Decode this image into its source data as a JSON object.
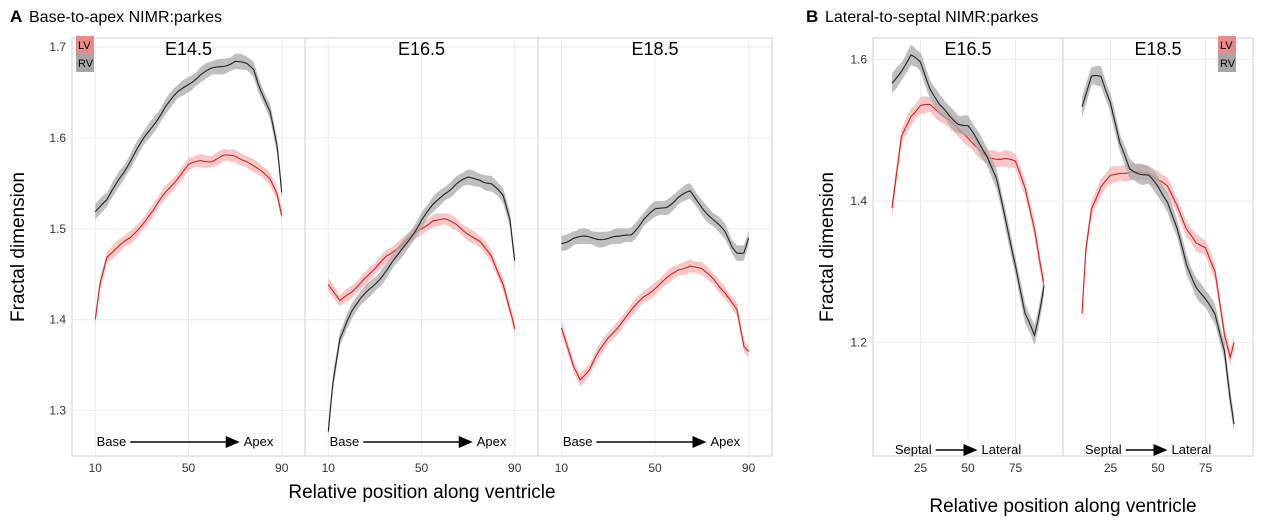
{
  "colors": {
    "LV": "#cc2222",
    "LV_band": "#f4b4b4",
    "RV": "#222222",
    "RV_band": "#aaaaaa",
    "LV_key": "#e88a8a",
    "RV_key": "#a6a6a6",
    "grid": "#ececec",
    "border": "#cfcfcf"
  },
  "chart_data": [
    {
      "type": "line",
      "label": "A",
      "title": "Base-to-apex NIMR:parkes",
      "xlabel": "Relative position along ventricle",
      "ylabel": "Fractal dimension",
      "ylim": [
        1.25,
        1.71
      ],
      "yticks": [
        1.3,
        1.4,
        1.5,
        1.6,
        1.7
      ],
      "xlim": [
        0,
        100
      ],
      "xticks": [
        10,
        50,
        90
      ],
      "grid": true,
      "legend_position": "top-left",
      "legend": [
        "LV",
        "RV"
      ],
      "direction_labels": [
        "Base",
        "Apex"
      ],
      "facets": [
        {
          "title": "E14.5",
          "series": [
            {
              "name": "LV",
              "x": [
                10,
                12,
                15,
                20,
                25,
                30,
                35,
                40,
                45,
                50,
                55,
                60,
                65,
                70,
                75,
                80,
                85,
                88,
                90
              ],
              "y": [
                1.4,
                1.44,
                1.47,
                1.48,
                1.49,
                1.505,
                1.52,
                1.54,
                1.555,
                1.57,
                1.575,
                1.575,
                1.58,
                1.58,
                1.575,
                1.565,
                1.555,
                1.54,
                1.515
              ]
            },
            {
              "name": "RV",
              "x": [
                10,
                15,
                20,
                25,
                30,
                35,
                40,
                45,
                50,
                55,
                60,
                65,
                70,
                75,
                78,
                80,
                85,
                88,
                90
              ],
              "y": [
                1.52,
                1.53,
                1.555,
                1.575,
                1.595,
                1.615,
                1.635,
                1.648,
                1.66,
                1.67,
                1.675,
                1.68,
                1.685,
                1.68,
                1.675,
                1.66,
                1.63,
                1.59,
                1.54
              ]
            }
          ]
        },
        {
          "title": "E16.5",
          "series": [
            {
              "name": "LV",
              "x": [
                10,
                15,
                20,
                25,
                30,
                35,
                40,
                45,
                50,
                55,
                60,
                65,
                70,
                75,
                80,
                85,
                90
              ],
              "y": [
                1.44,
                1.42,
                1.43,
                1.445,
                1.455,
                1.47,
                1.48,
                1.49,
                1.5,
                1.51,
                1.51,
                1.505,
                1.495,
                1.485,
                1.47,
                1.44,
                1.39
              ]
            },
            {
              "name": "RV",
              "x": [
                10,
                12,
                15,
                18,
                20,
                25,
                30,
                35,
                40,
                45,
                50,
                55,
                60,
                65,
                70,
                75,
                80,
                85,
                88,
                90
              ],
              "y": [
                1.275,
                1.33,
                1.38,
                1.4,
                1.41,
                1.425,
                1.44,
                1.455,
                1.47,
                1.49,
                1.51,
                1.525,
                1.54,
                1.55,
                1.555,
                1.555,
                1.55,
                1.535,
                1.51,
                1.465
              ]
            }
          ]
        },
        {
          "title": "E18.5",
          "series": [
            {
              "name": "LV",
              "x": [
                10,
                15,
                18,
                22,
                25,
                30,
                35,
                40,
                45,
                50,
                55,
                60,
                65,
                70,
                75,
                80,
                85,
                88,
                90
              ],
              "y": [
                1.39,
                1.35,
                1.335,
                1.345,
                1.36,
                1.38,
                1.395,
                1.41,
                1.425,
                1.435,
                1.445,
                1.455,
                1.46,
                1.455,
                1.445,
                1.43,
                1.41,
                1.37,
                1.365
              ]
            },
            {
              "name": "RV",
              "x": [
                10,
                15,
                20,
                25,
                30,
                35,
                40,
                45,
                50,
                55,
                60,
                65,
                70,
                75,
                80,
                83,
                85,
                88,
                90
              ],
              "y": [
                1.485,
                1.49,
                1.49,
                1.49,
                1.49,
                1.49,
                1.495,
                1.51,
                1.52,
                1.525,
                1.535,
                1.54,
                1.525,
                1.51,
                1.495,
                1.48,
                1.475,
                1.475,
                1.49
              ]
            }
          ]
        }
      ]
    },
    {
      "type": "line",
      "label": "B",
      "title": "Lateral-to-septal NIMR:parkes",
      "xlabel": "Relative position along ventricle",
      "ylabel": "Fractal dimension",
      "ylim": [
        1.04,
        1.63
      ],
      "yticks": [
        1.2,
        1.4,
        1.6
      ],
      "xlim": [
        0,
        100
      ],
      "xticks": [
        25,
        50,
        75
      ],
      "grid": true,
      "legend_position": "top-right",
      "legend": [
        "LV",
        "RV"
      ],
      "direction_labels": [
        "Septal",
        "Lateral"
      ],
      "facets": [
        {
          "title": "E16.5",
          "series": [
            {
              "name": "LV",
              "x": [
                10,
                12,
                15,
                20,
                25,
                30,
                35,
                40,
                45,
                50,
                55,
                60,
                65,
                70,
                75,
                80,
                85,
                88,
                90
              ],
              "y": [
                1.39,
                1.43,
                1.49,
                1.52,
                1.535,
                1.535,
                1.525,
                1.515,
                1.5,
                1.49,
                1.475,
                1.46,
                1.46,
                1.46,
                1.455,
                1.42,
                1.36,
                1.31,
                1.28
              ]
            },
            {
              "name": "RV",
              "x": [
                10,
                15,
                20,
                25,
                30,
                35,
                40,
                45,
                50,
                55,
                60,
                65,
                70,
                75,
                80,
                85,
                87,
                90
              ],
              "y": [
                1.565,
                1.585,
                1.605,
                1.595,
                1.56,
                1.535,
                1.52,
                1.51,
                1.505,
                1.485,
                1.465,
                1.43,
                1.37,
                1.31,
                1.24,
                1.21,
                1.235,
                1.28
              ]
            }
          ]
        },
        {
          "title": "E18.5",
          "series": [
            {
              "name": "LV",
              "x": [
                10,
                12,
                15,
                20,
                25,
                30,
                35,
                40,
                45,
                50,
                55,
                60,
                65,
                70,
                75,
                80,
                85,
                88,
                90
              ],
              "y": [
                1.24,
                1.33,
                1.39,
                1.42,
                1.435,
                1.44,
                1.44,
                1.44,
                1.44,
                1.43,
                1.42,
                1.395,
                1.36,
                1.34,
                1.335,
                1.3,
                1.21,
                1.18,
                1.2
              ]
            },
            {
              "name": "RV",
              "x": [
                10,
                15,
                20,
                25,
                30,
                35,
                40,
                45,
                50,
                55,
                60,
                65,
                70,
                75,
                80,
                85,
                88,
                90
              ],
              "y": [
                1.535,
                1.575,
                1.575,
                1.54,
                1.48,
                1.445,
                1.44,
                1.435,
                1.42,
                1.4,
                1.36,
                1.31,
                1.28,
                1.26,
                1.24,
                1.19,
                1.12,
                1.085
              ]
            }
          ]
        }
      ]
    }
  ]
}
